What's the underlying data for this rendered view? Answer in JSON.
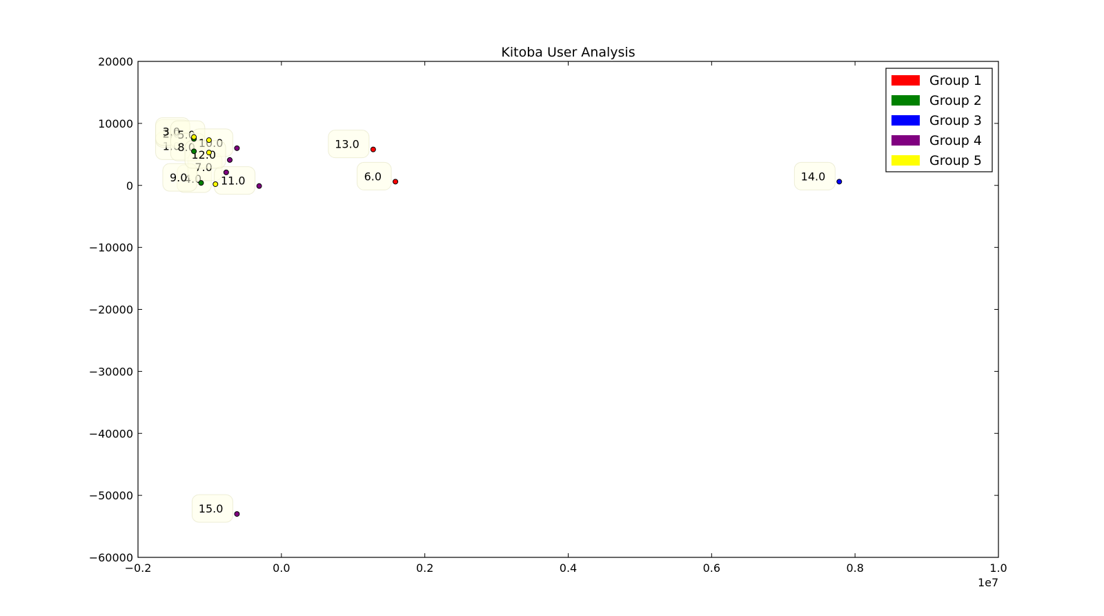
{
  "chart_data": {
    "type": "scatter",
    "title": "Kitoba User Analysis",
    "xlabel": "",
    "ylabel": "",
    "xlim": [
      -2000000,
      10000000
    ],
    "ylim": [
      -60000,
      20000
    ],
    "x_scale_note": "1e7",
    "x_ticks": [
      -2000000,
      0,
      2000000,
      4000000,
      6000000,
      8000000,
      10000000
    ],
    "x_tick_labels": [
      "−0.2",
      "0.0",
      "0.2",
      "0.4",
      "0.6",
      "0.8",
      "1.0"
    ],
    "y_ticks": [
      20000,
      10000,
      0,
      -10000,
      -20000,
      -30000,
      -40000,
      -50000,
      -60000
    ],
    "y_tick_labels": [
      "20000",
      "10000",
      "0",
      "−10000",
      "−20000",
      "−30000",
      "−40000",
      "−50000",
      "−60000"
    ],
    "grid": false,
    "legend_position": "top-right",
    "groups": [
      {
        "name": "Group 1",
        "color": "#ff0000"
      },
      {
        "name": "Group 2",
        "color": "#008000"
      },
      {
        "name": "Group 3",
        "color": "#0000ff"
      },
      {
        "name": "Group 4",
        "color": "#800080"
      },
      {
        "name": "Group 5",
        "color": "#ffff00"
      }
    ],
    "points": [
      {
        "label": "1.0",
        "x": -1220000,
        "y": 5500,
        "group": 2
      },
      {
        "label": "2.0",
        "x": -1220000,
        "y": 7500,
        "group": 2
      },
      {
        "label": "3.0",
        "x": -1220000,
        "y": 7800,
        "group": 5
      },
      {
        "label": "4.0",
        "x": -920000,
        "y": 200,
        "group": 5
      },
      {
        "label": "5.0",
        "x": -1010000,
        "y": 7300,
        "group": 5
      },
      {
        "label": "6.0",
        "x": 1590000,
        "y": 600,
        "group": 1
      },
      {
        "label": "7.0",
        "x": -770000,
        "y": 2100,
        "group": 4
      },
      {
        "label": "8.0",
        "x": -1010000,
        "y": 5300,
        "group": 5
      },
      {
        "label": "9.0",
        "x": -1120000,
        "y": 400,
        "group": 2
      },
      {
        "label": "10.0",
        "x": -620000,
        "y": 6000,
        "group": 4
      },
      {
        "label": "11.0",
        "x": -310000,
        "y": -100,
        "group": 4
      },
      {
        "label": "12.0",
        "x": -720000,
        "y": 4100,
        "group": 4
      },
      {
        "label": "13.0",
        "x": 1280000,
        "y": 5800,
        "group": 1
      },
      {
        "label": "14.0",
        "x": 7780000,
        "y": 600,
        "group": 3
      },
      {
        "label": "15.0",
        "x": -620000,
        "y": -53000,
        "group": 4
      }
    ]
  }
}
